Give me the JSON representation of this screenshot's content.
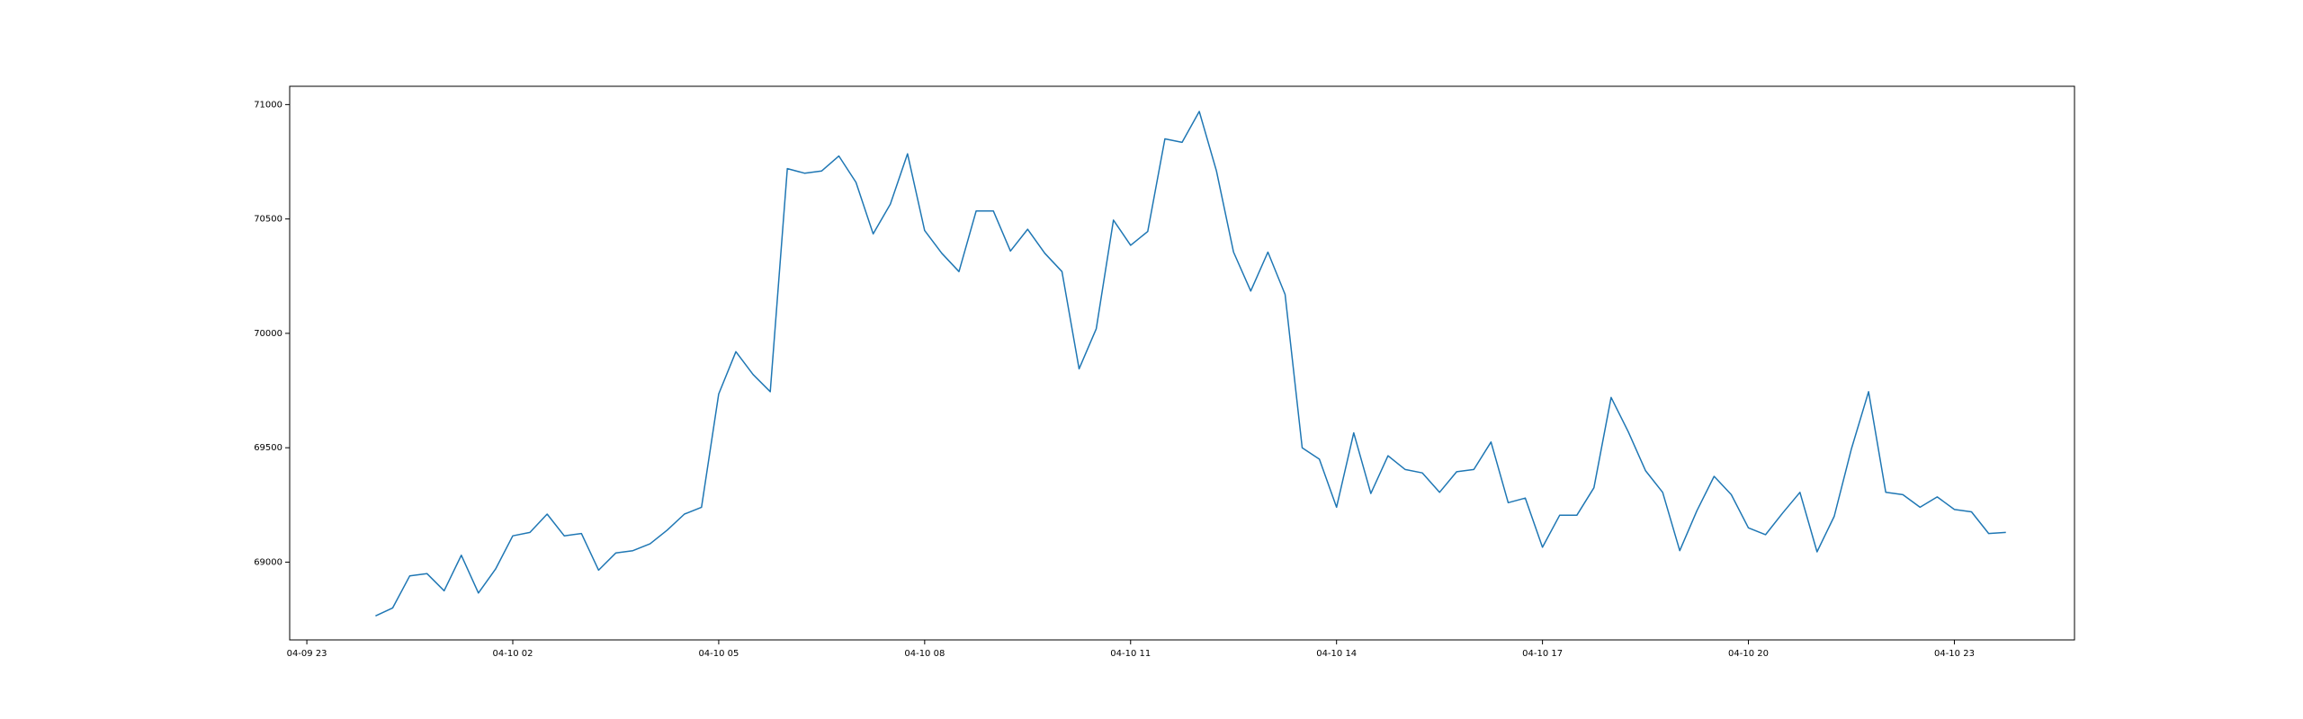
{
  "chart_data": {
    "type": "line",
    "title": "",
    "xlabel": "",
    "ylabel": "",
    "x_ticks": [
      "04-09 23",
      "04-10 02",
      "04-10 05",
      "04-10 08",
      "04-10 11",
      "04-10 14",
      "04-10 17",
      "04-10 20",
      "04-10 23"
    ],
    "y_ticks": [
      "69000",
      "69500",
      "70000",
      "70500",
      "71000"
    ],
    "ylim": [
      68660,
      71080
    ],
    "xlim": [
      "2024-04-09 22:45",
      "2024-04-11 00:45"
    ],
    "grid": false,
    "series": [
      {
        "color": "#1f77b4",
        "x": [
          "2024-04-10 00:00",
          "2024-04-10 00:15",
          "2024-04-10 00:30",
          "2024-04-10 00:45",
          "2024-04-10 01:00",
          "2024-04-10 01:15",
          "2024-04-10 01:30",
          "2024-04-10 01:45",
          "2024-04-10 02:00",
          "2024-04-10 02:15",
          "2024-04-10 02:30",
          "2024-04-10 02:45",
          "2024-04-10 03:00",
          "2024-04-10 03:15",
          "2024-04-10 03:30",
          "2024-04-10 03:45",
          "2024-04-10 04:00",
          "2024-04-10 04:15",
          "2024-04-10 04:30",
          "2024-04-10 04:45",
          "2024-04-10 05:00",
          "2024-04-10 05:15",
          "2024-04-10 05:30",
          "2024-04-10 05:45",
          "2024-04-10 06:00",
          "2024-04-10 06:15",
          "2024-04-10 06:30",
          "2024-04-10 06:45",
          "2024-04-10 07:00",
          "2024-04-10 07:15",
          "2024-04-10 07:30",
          "2024-04-10 07:45",
          "2024-04-10 08:00",
          "2024-04-10 08:15",
          "2024-04-10 08:30",
          "2024-04-10 08:45",
          "2024-04-10 09:00",
          "2024-04-10 09:15",
          "2024-04-10 09:30",
          "2024-04-10 09:45",
          "2024-04-10 10:00",
          "2024-04-10 10:15",
          "2024-04-10 10:30",
          "2024-04-10 10:45",
          "2024-04-10 11:00",
          "2024-04-10 11:15",
          "2024-04-10 11:30",
          "2024-04-10 11:45",
          "2024-04-10 12:00",
          "2024-04-10 12:15",
          "2024-04-10 12:30",
          "2024-04-10 12:45",
          "2024-04-10 13:00",
          "2024-04-10 13:15",
          "2024-04-10 13:30",
          "2024-04-10 13:45",
          "2024-04-10 14:00",
          "2024-04-10 14:15",
          "2024-04-10 14:30",
          "2024-04-10 14:45",
          "2024-04-10 15:00",
          "2024-04-10 15:15",
          "2024-04-10 15:30",
          "2024-04-10 15:45",
          "2024-04-10 16:00",
          "2024-04-10 16:15",
          "2024-04-10 16:30",
          "2024-04-10 16:45",
          "2024-04-10 17:00",
          "2024-04-10 17:15",
          "2024-04-10 17:30",
          "2024-04-10 17:45",
          "2024-04-10 18:00",
          "2024-04-10 18:15",
          "2024-04-10 18:30",
          "2024-04-10 18:45",
          "2024-04-10 19:00",
          "2024-04-10 19:15",
          "2024-04-10 19:30",
          "2024-04-10 19:45",
          "2024-04-10 20:00",
          "2024-04-10 20:15",
          "2024-04-10 20:30",
          "2024-04-10 20:45",
          "2024-04-10 21:00",
          "2024-04-10 21:15",
          "2024-04-10 21:30",
          "2024-04-10 21:45",
          "2024-04-10 22:00",
          "2024-04-10 22:15",
          "2024-04-10 22:30",
          "2024-04-10 22:45",
          "2024-04-10 23:00",
          "2024-04-10 23:15",
          "2024-04-10 23:30",
          "2024-04-10 23:45"
        ],
        "values": [
          68765,
          68800,
          68940,
          68950,
          68875,
          69030,
          68865,
          68970,
          69115,
          69130,
          69210,
          69115,
          69125,
          68965,
          69040,
          69050,
          69080,
          69140,
          69210,
          69240,
          69735,
          69920,
          69820,
          69745,
          70720,
          70700,
          70710,
          70775,
          70660,
          70435,
          70565,
          70785,
          70450,
          70350,
          70270,
          70535,
          70535,
          70360,
          70455,
          70350,
          70270,
          69845,
          70020,
          70495,
          70385,
          70445,
          70850,
          70835,
          70970,
          70710,
          70355,
          70185,
          70355,
          70170,
          69500,
          69450,
          69240,
          69565,
          69300,
          69465,
          69405,
          69390,
          69305,
          69395,
          69405,
          69525,
          69260,
          69280,
          69065,
          69205,
          69205,
          69325,
          69720,
          69570,
          69400,
          69305,
          69050,
          69225,
          69375,
          69295,
          69150,
          69120,
          69215,
          69305,
          69045,
          69200,
          69495,
          69745,
          69305,
          69295,
          69240,
          69285,
          69230,
          69220,
          69125,
          69130
        ]
      }
    ]
  }
}
